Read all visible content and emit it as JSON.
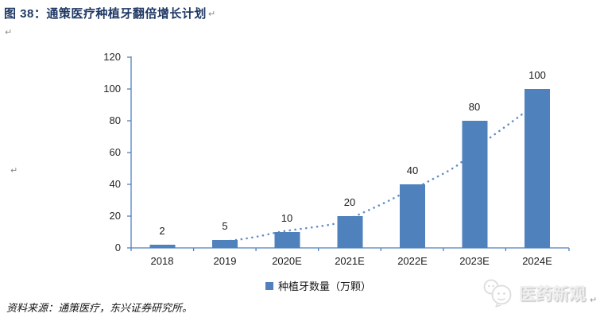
{
  "page": {
    "title": "图 38：通策医疗种植牙翻倍增长计划",
    "return_mark": "↵",
    "source_note": "资料来源：通策医疗，东兴证券研究所。",
    "watermark_text": "医药新观"
  },
  "chart_data": {
    "type": "bar",
    "title": "通策医疗种植牙翻倍增长计划",
    "categories": [
      "2018",
      "2019",
      "2020E",
      "2021E",
      "2022E",
      "2023E",
      "2024E"
    ],
    "values": [
      2,
      5,
      10,
      20,
      40,
      80,
      100
    ],
    "series": [
      {
        "name": "种植牙数量（万颗）",
        "values": [
          2,
          5,
          10,
          20,
          40,
          80,
          100
        ]
      }
    ],
    "data_labels": [
      "2",
      "5",
      "10",
      "20",
      "40",
      "80",
      "100"
    ],
    "legend": {
      "label": "种植牙数量（万颗）",
      "position": "bottom"
    },
    "yticks": [
      "0",
      "20",
      "40",
      "60",
      "80",
      "100",
      "120"
    ],
    "ylim": [
      0,
      120
    ],
    "xlabel": "",
    "ylabel": "",
    "grid": false,
    "trendline": {
      "style": "dotted",
      "shape": "exponential",
      "color": "#638EC6"
    },
    "colors": {
      "bar": "#4F81BD",
      "axis": "#4F81BD",
      "label": "#1a1a1a",
      "title": "#1F3864"
    }
  }
}
